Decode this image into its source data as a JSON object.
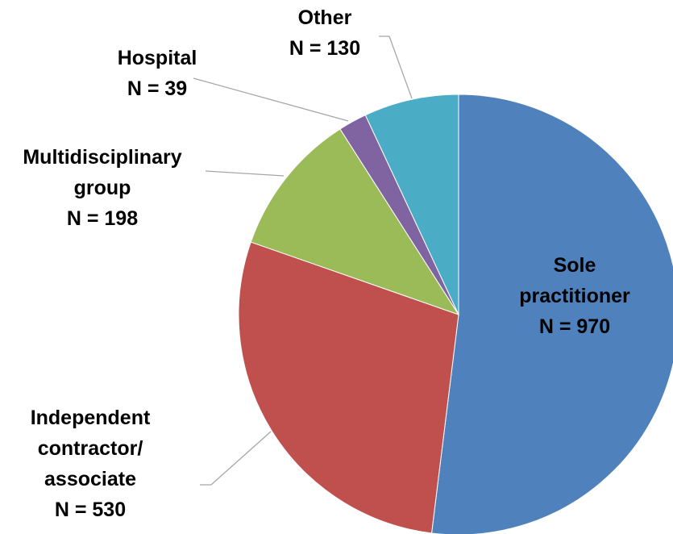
{
  "chart_data": {
    "type": "pie",
    "categories": [
      "Sole practitioner",
      "Independent contractor/ associate",
      "Multidisciplinary group",
      "Hospital",
      "Other"
    ],
    "values": [
      970,
      530,
      198,
      39,
      130
    ],
    "value_labels": [
      "N = 970",
      "N = 530",
      "N = 198",
      "N = 39",
      "N = 130"
    ],
    "colors": [
      "#4f81bd",
      "#c0504d",
      "#9bbb59",
      "#8064a2",
      "#4bacc6"
    ],
    "start_angle": 0,
    "direction": "clockwise"
  }
}
